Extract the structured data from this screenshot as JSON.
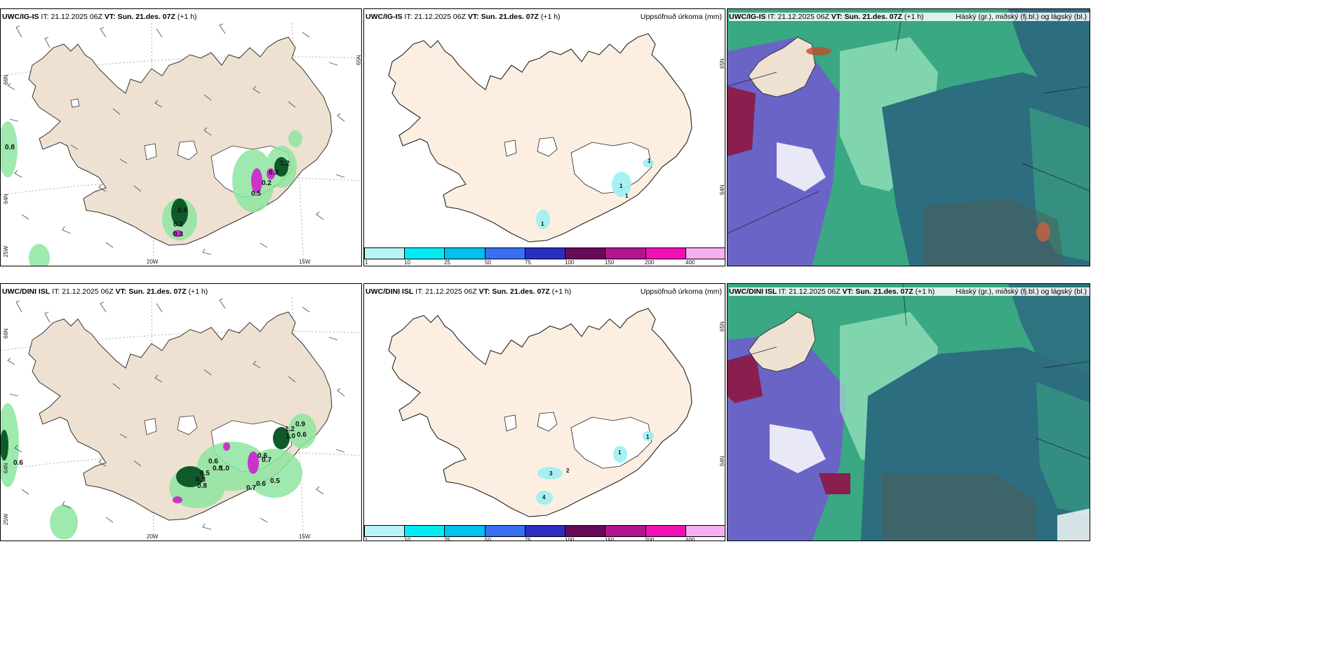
{
  "common": {
    "it_label": "IT:",
    "it_value": "21.12.2025 06Z",
    "vt_label": "VT:",
    "vt_value": "Sun. 21.des. 07Z",
    "lead": "(+1 h)"
  },
  "panels": {
    "top": {
      "model": "UWC/IG-IS",
      "precip_label": "Uppsöfnuð úrkoma (mm)",
      "cloud_label": "Háský (gr.), miðský (fj.bl.) og lágský (bl.)",
      "wind_values": [
        "0.8",
        "0.2",
        "0.3",
        "0.9",
        "0.2",
        "1.2",
        "0.5",
        "0.3"
      ],
      "precip_values": [
        "1",
        "1",
        "1",
        "1"
      ]
    },
    "bottom": {
      "model": "UWC/DINI ISL",
      "precip_label": "Uppsöfnuð úrkoma (mm)",
      "cloud_label": "Háský (gr.), miðský (fj.bl.) og lágský (bl.)",
      "wind_values": [
        "0.6",
        "0.6",
        "0.8",
        "1.0",
        "0.5",
        "0.3",
        "0.8",
        "0.7",
        "0.6",
        "0.5",
        "0.7",
        "0.6",
        "0.9",
        "1.2",
        "1.0",
        "0.6"
      ],
      "precip_values": [
        "3",
        "2",
        "4",
        "1",
        "1"
      ]
    }
  },
  "ticks": {
    "lat66": "66N",
    "lat64": "64N",
    "lat65": "65N",
    "lon25": "25W",
    "lon20": "20W",
    "lon15": "15W"
  },
  "colorbar": {
    "labels": [
      "1",
      "10",
      "25",
      "50",
      "75",
      "100",
      "150",
      "200",
      "400"
    ],
    "colors": [
      "#b7f4f8",
      "#00ecf4",
      "#00c0ee",
      "#3a6ff2",
      "#2a2fc0",
      "#6a0a5a",
      "#b2148e",
      "#f010b6",
      "#f4b0f0"
    ]
  },
  "colors": {
    "land": "#efe1d2",
    "land_light": "#fcefe2",
    "glacier": "#ffffff",
    "wind_green": "#8ee6a0",
    "wind_dark": "#0f5a2a",
    "precip_cyan": "#9ef0f2",
    "cloud_teal": "#2d6d80",
    "cloud_green": "#3aa882",
    "cloud_purple": "#6a64c6",
    "cloud_maroon": "#8a1e4e",
    "cloud_mint": "#9ee8c2"
  }
}
